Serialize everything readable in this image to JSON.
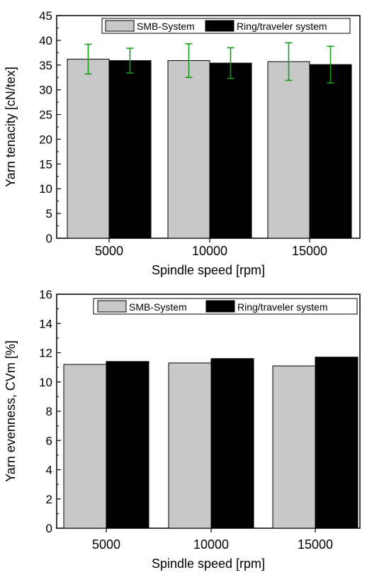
{
  "chart_data": [
    {
      "type": "bar",
      "categories": [
        "5000",
        "10000",
        "15000"
      ],
      "xlabel": "Spindle speed [rpm]",
      "ylabel": "Yarn tenacity [cN/tex]",
      "ylim": [
        0,
        45
      ],
      "yticks": [
        "0",
        "5",
        "10",
        "15",
        "20",
        "25",
        "30",
        "35",
        "40",
        "45"
      ],
      "series": [
        {
          "name": "SMB-System",
          "values": [
            36.2,
            35.9,
            35.7
          ],
          "error": [
            3.0,
            3.4,
            3.8
          ],
          "color": "#c8c8c8"
        },
        {
          "name": "Ring/traveler system",
          "values": [
            35.9,
            35.4,
            35.1
          ],
          "error": [
            2.5,
            3.1,
            3.7
          ],
          "color": "#000000"
        }
      ],
      "error_color": "#1a9c1a",
      "legend": "top-right",
      "grid": false
    },
    {
      "type": "bar",
      "categories": [
        "5000",
        "10000",
        "15000"
      ],
      "xlabel": "Spindle speed [rpm]",
      "ylabel": "Yarn evenness, CVm [%]",
      "ylim": [
        0,
        16
      ],
      "yticks": [
        "0",
        "2",
        "4",
        "6",
        "8",
        "10",
        "12",
        "14",
        "16"
      ],
      "series": [
        {
          "name": "SMB-System",
          "values": [
            11.2,
            11.3,
            11.1
          ],
          "color": "#c8c8c8"
        },
        {
          "name": "Ring/traveler system",
          "values": [
            11.4,
            11.6,
            11.7
          ],
          "color": "#000000"
        }
      ],
      "legend": "top-right",
      "grid": false
    }
  ]
}
